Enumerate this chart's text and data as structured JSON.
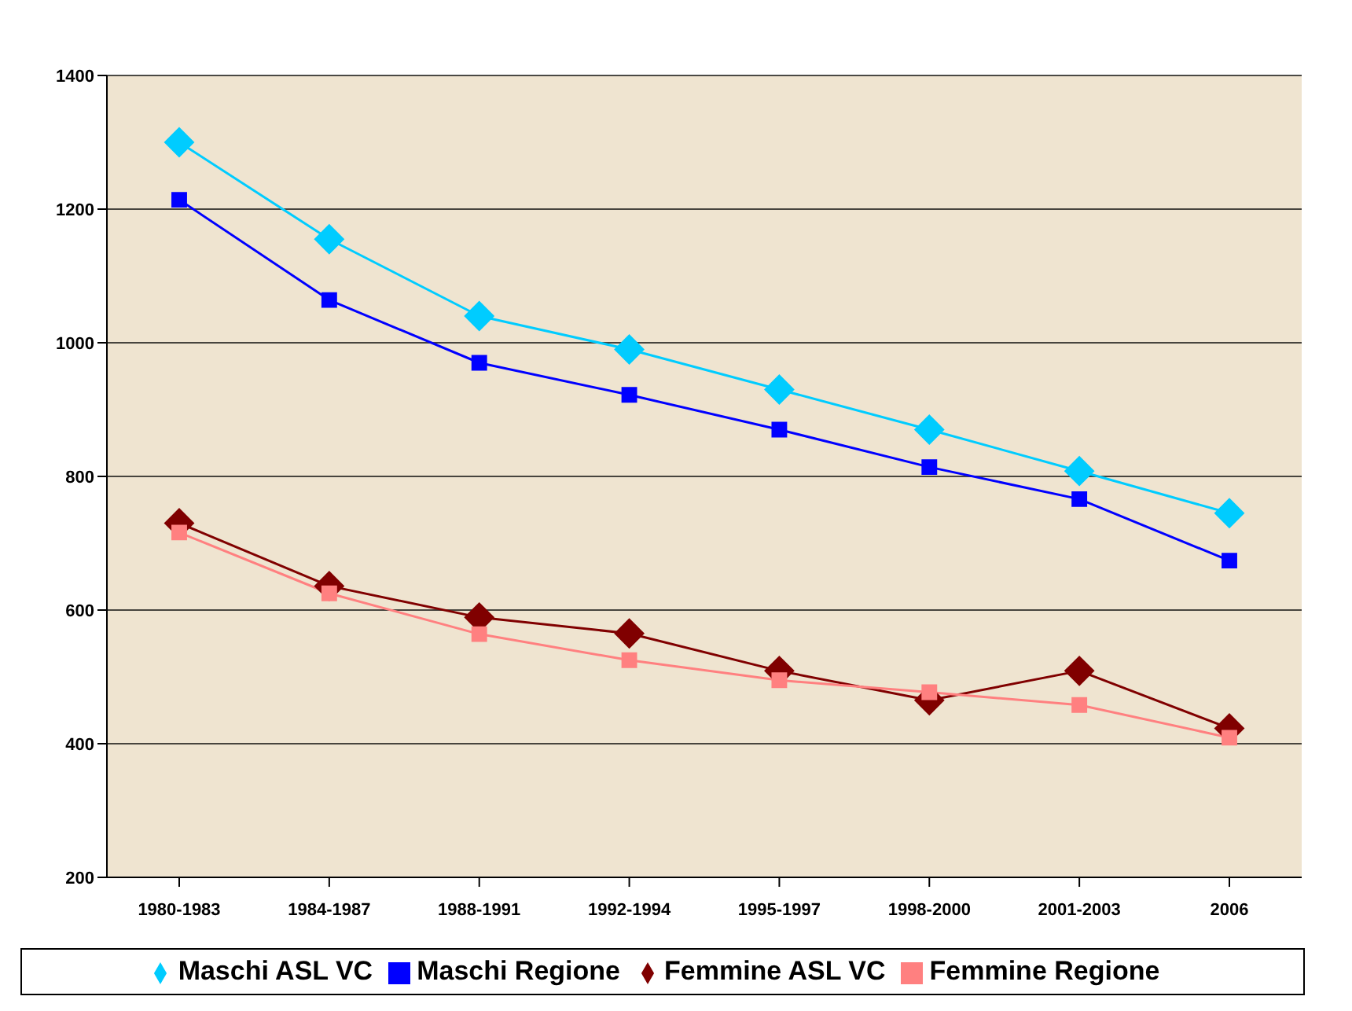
{
  "chart_data": {
    "type": "line",
    "categories": [
      "1980-1983",
      "1984-1987",
      "1988-1991",
      "1992-1994",
      "1995-1997",
      "1998-2000",
      "2001-2003",
      "2006"
    ],
    "series": [
      {
        "name": "Maschi ASL VC",
        "color": "#00ccff",
        "marker": "diamond",
        "values": [
          1300,
          1155,
          1040,
          990,
          930,
          870,
          808,
          745
        ]
      },
      {
        "name": "Maschi Regione",
        "color": "#0000ff",
        "marker": "square",
        "values": [
          1214,
          1064,
          970,
          922,
          870,
          814,
          766,
          674
        ]
      },
      {
        "name": "Femmine ASL VC",
        "color": "#800000",
        "marker": "diamond",
        "values": [
          730,
          636,
          589,
          565,
          509,
          465,
          509,
          423
        ]
      },
      {
        "name": "Femmine Regione",
        "color": "#ff8080",
        "marker": "square",
        "values": [
          716,
          625,
          564,
          525,
          495,
          477,
          458,
          409
        ]
      }
    ],
    "ylim": [
      200,
      1400
    ],
    "yticks": [
      200,
      400,
      600,
      800,
      1000,
      1200,
      1400
    ],
    "grid": "y",
    "legend": "bottom"
  }
}
